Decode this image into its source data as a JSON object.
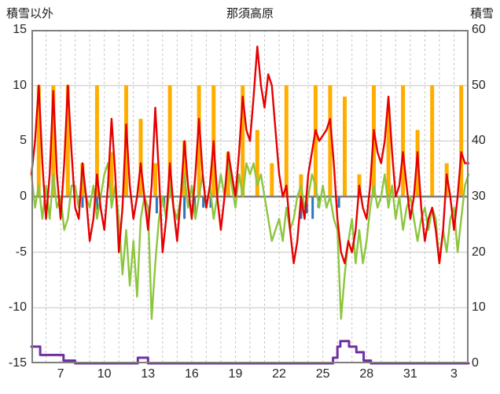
{
  "header": {
    "left_axis_title": "積雪以外",
    "chart_title": "那須高原",
    "right_axis_title": "積雪"
  },
  "chart_data": {
    "type": "line",
    "title": "那須高原",
    "x_range": [
      5,
      35
    ],
    "x_ticks": [
      {
        "t": 7,
        "label": "7"
      },
      {
        "t": 10,
        "label": "10"
      },
      {
        "t": 13,
        "label": "13"
      },
      {
        "t": 16,
        "label": "16"
      },
      {
        "t": 19,
        "label": "19"
      },
      {
        "t": 22,
        "label": "22"
      },
      {
        "t": 25,
        "label": "25"
      },
      {
        "t": 28,
        "label": "28"
      },
      {
        "t": 31,
        "label": "31"
      },
      {
        "t": 34,
        "label": "3"
      }
    ],
    "left_axis": {
      "title": "積雪以外",
      "min": -15,
      "max": 15,
      "ticks": [
        15,
        10,
        5,
        0,
        -5,
        -10,
        -15
      ]
    },
    "right_axis": {
      "title": "積雪",
      "min": 0,
      "max": 60,
      "ticks": [
        60,
        50,
        40,
        30,
        20,
        10,
        0
      ]
    },
    "grid": true,
    "legend": false,
    "colors": {
      "grid": "#c6c6c6",
      "zero_line": "#808080",
      "frame": "#7f7f7f",
      "text": "#262626"
    },
    "series": [
      {
        "name": "sunshine-bars",
        "kind": "bar",
        "axis": "left",
        "color": "#ffae00",
        "width": 5,
        "x_start": 5.5,
        "x_step": 1,
        "values": [
          10,
          10,
          10,
          3,
          10,
          4,
          10,
          7,
          3,
          10,
          5,
          10,
          10,
          4,
          10,
          6,
          3,
          10,
          2,
          10,
          10,
          9,
          2,
          10,
          8,
          10,
          6,
          10,
          3,
          10
        ]
      },
      {
        "name": "precipitation-bars",
        "kind": "bar",
        "axis": "left",
        "color": "#2e75b6",
        "width": 3,
        "points": [
          [
            8.5,
            -1
          ],
          [
            9.5,
            -1.2
          ],
          [
            13.6,
            -1.5
          ],
          [
            14.1,
            -1
          ],
          [
            15.5,
            -2
          ],
          [
            16.2,
            -1.5
          ],
          [
            16.8,
            -1
          ],
          [
            17.3,
            -1
          ],
          [
            23.5,
            -2
          ],
          [
            23.9,
            -1.5
          ],
          [
            24.3,
            -2
          ],
          [
            24.7,
            -1
          ],
          [
            26.1,
            -1
          ]
        ]
      },
      {
        "name": "green-line",
        "kind": "line",
        "axis": "left",
        "color": "#8cc63e",
        "stroke_width": 2.4,
        "x_start": 5,
        "x_step": 0.25,
        "values": [
          2,
          -1,
          1,
          -2,
          1,
          -2,
          2,
          -1,
          0,
          -3,
          -2,
          1,
          1,
          -1,
          2,
          0,
          -1,
          1,
          -2,
          0,
          2,
          3,
          -1,
          1,
          -2,
          -7,
          -3,
          -8,
          -4,
          -9,
          -2,
          0,
          -1,
          -11,
          -6,
          -2,
          0,
          -2,
          1,
          -1,
          -2,
          0,
          2,
          -1,
          1,
          -2,
          0,
          2,
          -1,
          1,
          -2,
          0,
          2,
          0,
          3,
          1,
          -1,
          2,
          0,
          3,
          2,
          3,
          1,
          2,
          0,
          -2,
          -4,
          -3,
          -2,
          -4,
          -1,
          -3,
          -2,
          0,
          1,
          -1,
          0,
          2,
          1,
          -1,
          1,
          -1,
          0,
          -2,
          -3,
          -11,
          -7,
          -4,
          -2,
          -6,
          -3,
          -6,
          -4,
          -1,
          1,
          -1,
          0,
          2,
          -1,
          1,
          -2,
          0,
          -3,
          -1,
          0,
          -2,
          -4,
          -2,
          -1,
          -3,
          -1,
          -2,
          -6,
          -3,
          -5,
          -2,
          -1,
          -5,
          -2,
          1,
          2
        ]
      },
      {
        "name": "temperature-line",
        "kind": "line",
        "axis": "left",
        "color": "#e60000",
        "stroke_width": 2.4,
        "x_start": 5,
        "x_step": 0.25,
        "values": [
          2,
          5,
          10,
          3,
          -2,
          2,
          9.5,
          2,
          -2,
          3,
          10,
          4,
          -1,
          -2,
          3,
          0,
          -4,
          -2,
          2,
          -1,
          -3,
          1,
          7,
          2,
          -5,
          -1,
          6.5,
          1,
          -2,
          0,
          3,
          0,
          -3,
          1,
          8,
          2,
          -5,
          -2,
          3,
          -1,
          -4,
          0,
          5,
          1,
          -2,
          2,
          7,
          2,
          -1,
          1,
          5,
          0,
          -3,
          0,
          4,
          2,
          0,
          4,
          9,
          6,
          5,
          9,
          13.5,
          10,
          8,
          11,
          10,
          6,
          2,
          0,
          1,
          -3,
          -6,
          -4,
          0,
          -2,
          2,
          4,
          6,
          5,
          5.5,
          6,
          7,
          3,
          -2,
          -5,
          -6,
          -4,
          -5,
          -3,
          1,
          -1,
          -2,
          1,
          6,
          4,
          3,
          5,
          9,
          4,
          0,
          1,
          4,
          1,
          -2,
          0,
          4,
          -1,
          -4,
          -2,
          -1,
          -3,
          -6,
          -3,
          2,
          0,
          -3,
          0,
          4,
          3,
          3
        ]
      },
      {
        "name": "snow-depth-line",
        "kind": "line",
        "axis": "right",
        "color": "#7030a0",
        "stroke_width": 3,
        "points": [
          [
            5,
            3
          ],
          [
            5.6,
            3
          ],
          [
            5.6,
            1.5
          ],
          [
            7.2,
            1.5
          ],
          [
            7.2,
            0.5
          ],
          [
            8.0,
            0.5
          ],
          [
            8.0,
            0
          ],
          [
            12.3,
            0
          ],
          [
            12.3,
            1
          ],
          [
            13.0,
            1
          ],
          [
            13.0,
            0
          ],
          [
            25.7,
            0
          ],
          [
            25.7,
            1
          ],
          [
            26.0,
            1
          ],
          [
            26.0,
            3
          ],
          [
            26.2,
            3
          ],
          [
            26.2,
            4
          ],
          [
            26.8,
            4
          ],
          [
            26.8,
            3
          ],
          [
            27.3,
            3
          ],
          [
            27.3,
            2
          ],
          [
            27.8,
            2
          ],
          [
            27.8,
            0.5
          ],
          [
            28.3,
            0.5
          ],
          [
            28.3,
            0
          ],
          [
            35,
            0
          ]
        ]
      }
    ]
  }
}
